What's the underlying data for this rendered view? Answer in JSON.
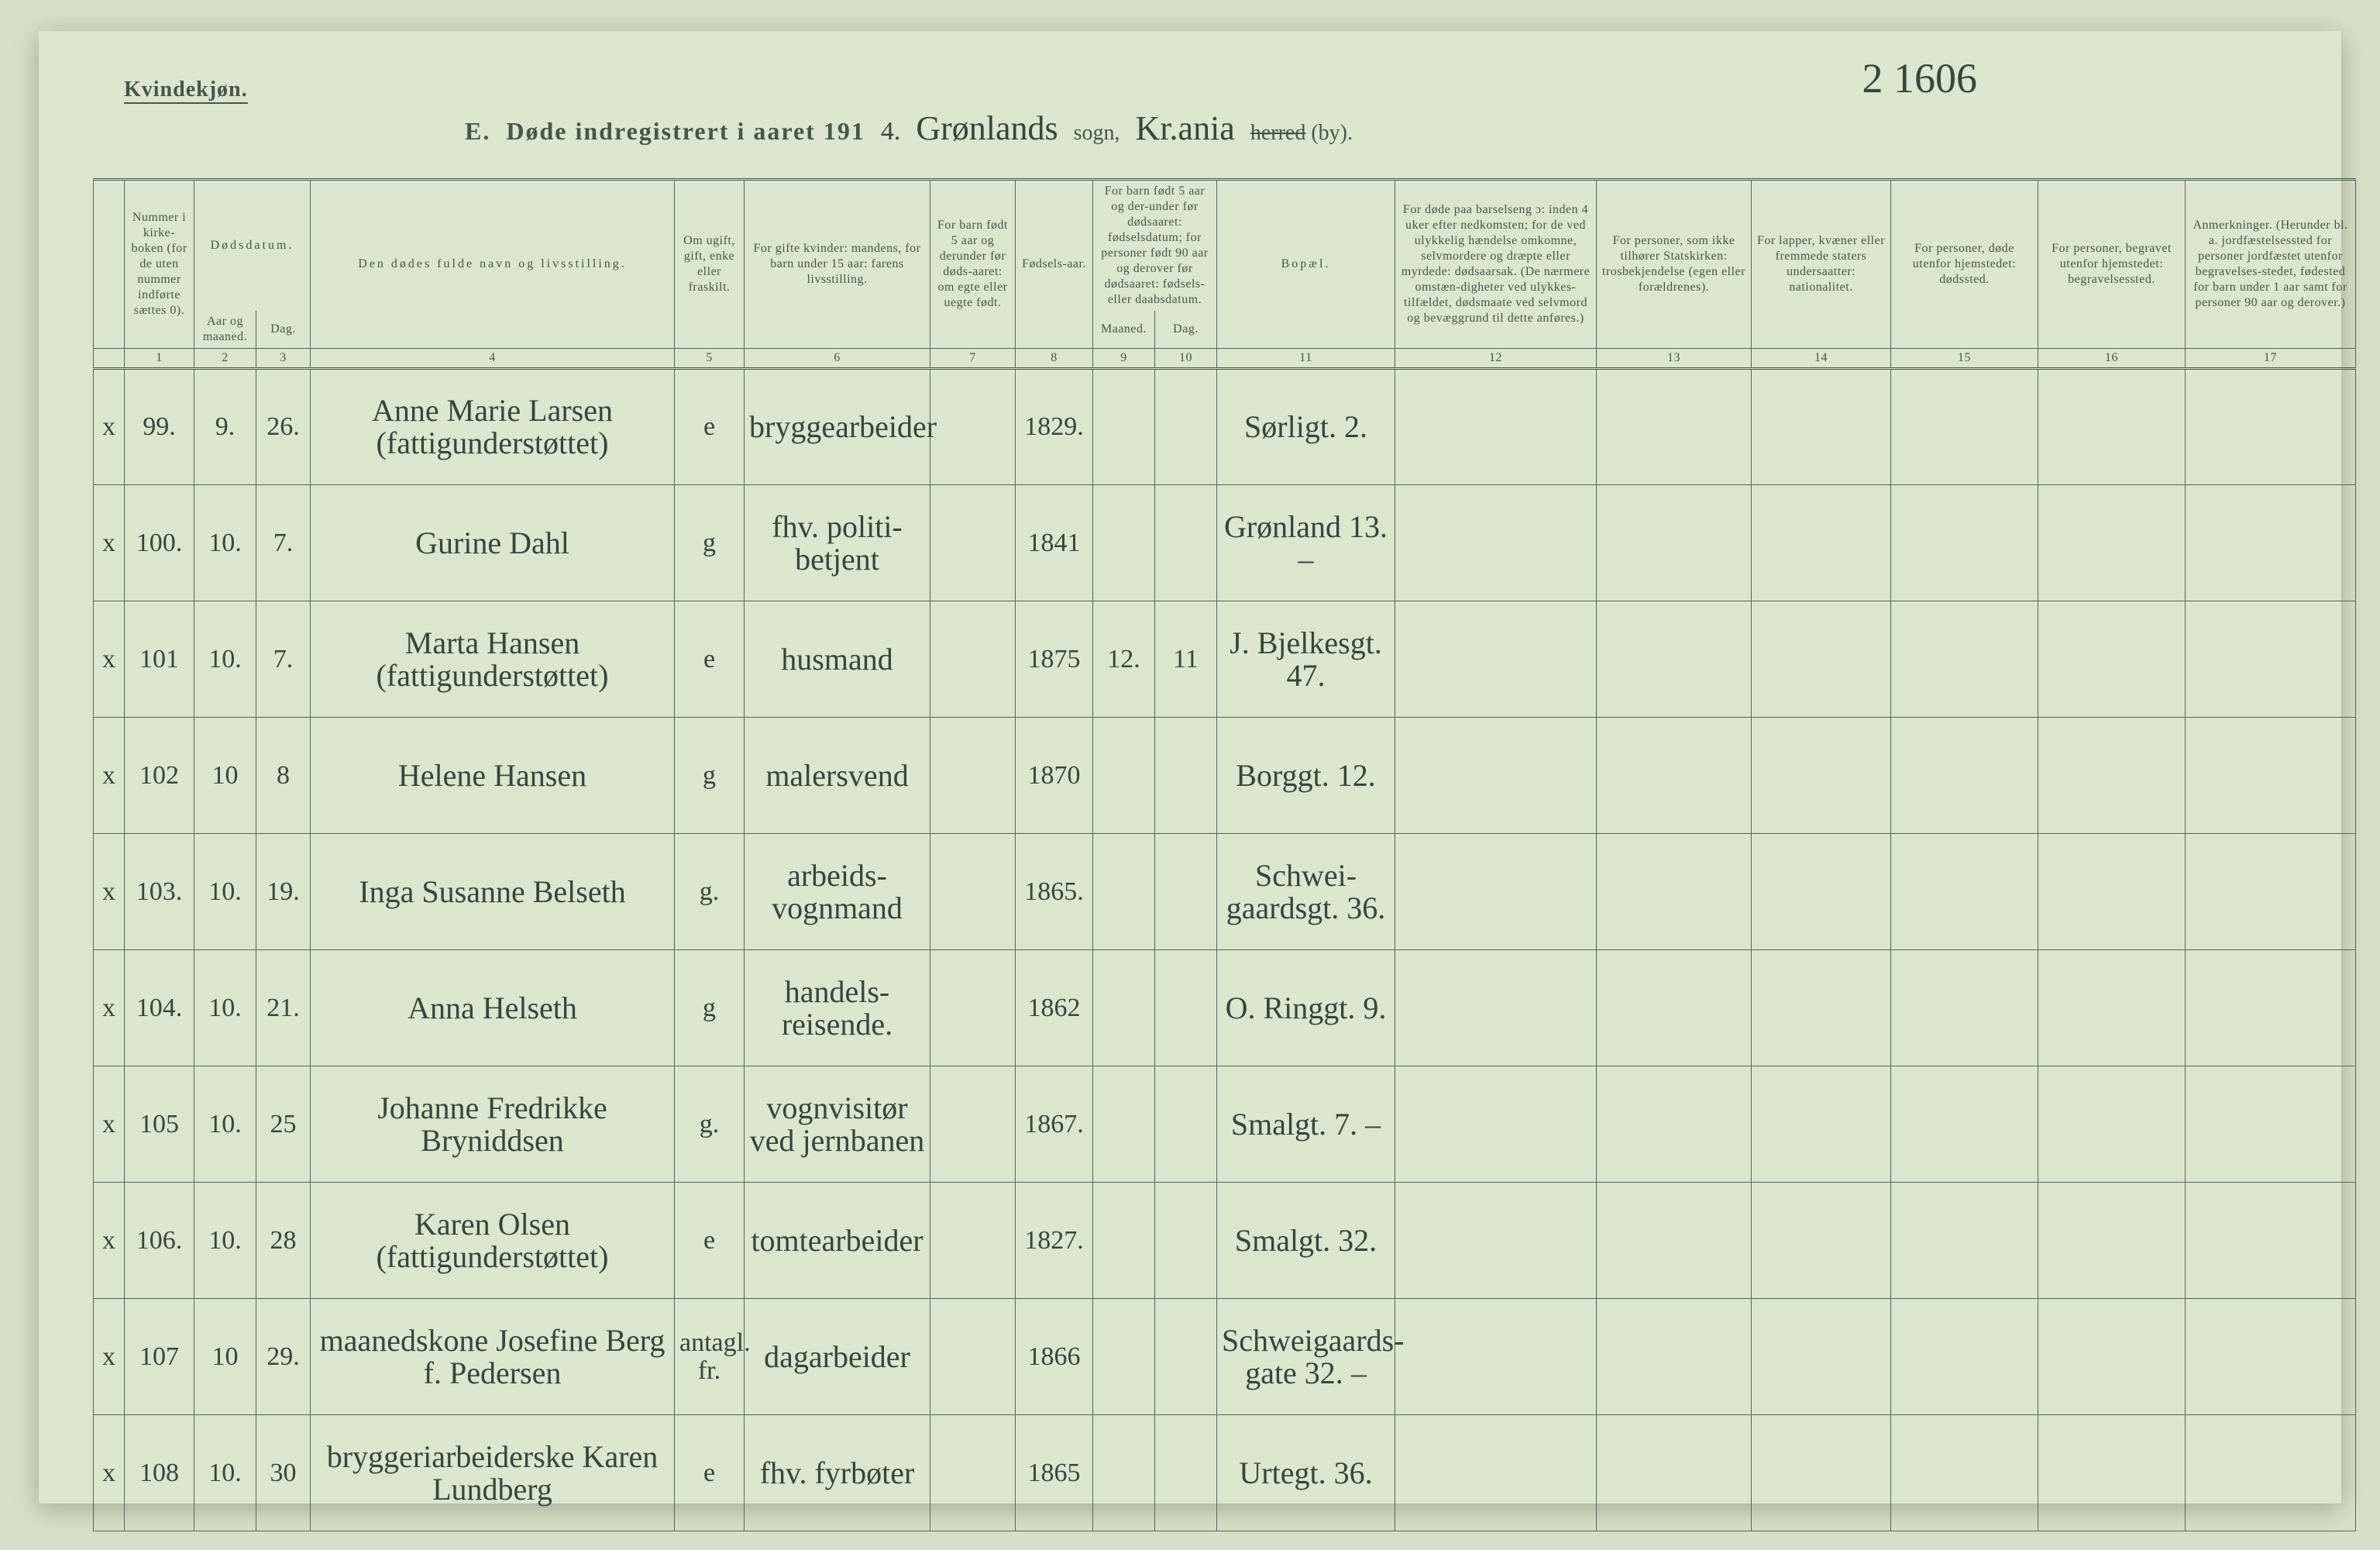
{
  "header": {
    "gender_label": "Kvindekjøn.",
    "section_letter": "E.",
    "title_prefix": "Døde indregistrert i aaret 191",
    "year_suffix": "4.",
    "parish_script": "Grønlands",
    "parish_label": "sogn,",
    "district_script": "Kr.ania",
    "herred_struck": "herred",
    "by_label": "(by).",
    "page_number_script": "2 1606"
  },
  "columns": {
    "c1": "Nummer i kirke-boken (for de uten nummer indførte sættes 0).",
    "c23_top": "Dødsdatum.",
    "c2": "Aar og maaned.",
    "c3": "Dag.",
    "c4": "Den dødes fulde navn og livsstilling.",
    "c5": "Om ugift, gift, enke eller fraskilt.",
    "c6": "For gifte kvinder: mandens, for barn under 15 aar: farens livsstilling.",
    "c7": "For barn født 5 aar og derunder før døds-aaret: om egte eller uegte født.",
    "c8": "Fødsels-aar.",
    "c910_top": "For barn født 5 aar og der-under før dødsaaret: fødselsdatum; for personer født 90 aar og derover før dødsaaret: fødsels- eller daabsdatum.",
    "c9": "Maaned.",
    "c10": "Dag.",
    "c11": "Bopæl.",
    "c12": "For døde paa barselseng ɔ: inden 4 uker efter nedkomsten; for de ved ulykkelig hændelse omkomne, selvmordere og dræpte eller myrdede: dødsaarsak. (De nærmere omstæn-digheter ved ulykkes-tilfældet, dødsmaate ved selvmord og bevæggrund til dette anføres.)",
    "c13": "For personer, som ikke tilhører Statskirken: trosbekjendelse (egen eller forældrenes).",
    "c14": "For lapper, kvæner eller fremmede staters undersaatter: nationalitet.",
    "c15": "For personer, døde utenfor hjemstedet: dødssted.",
    "c16": "For personer, begravet utenfor hjemstedet: begravelsessted.",
    "c17": "Anmerkninger. (Herunder bl. a. jordfæstelsessted for personer jordfæstet utenfor begravelses-stedet, fødested for barn under 1 aar samt for personer 90 aar og derover.)"
  },
  "colnums": [
    "1",
    "2",
    "3",
    "4",
    "5",
    "6",
    "7",
    "8",
    "9",
    "10",
    "11",
    "12",
    "13",
    "14",
    "15",
    "16",
    "17"
  ],
  "rows": [
    {
      "mark": "x",
      "num": "99.",
      "mon": "9.",
      "day": "26.",
      "name": "Anne Marie Larsen (fattigunderstøttet)",
      "status": "e",
      "occ": "bryggearbeider",
      "c7": "",
      "year": "1829.",
      "c9": "",
      "c10": "",
      "residence": "Sørligt. 2."
    },
    {
      "mark": "x",
      "num": "100.",
      "mon": "10.",
      "day": "7.",
      "name": "Gurine Dahl",
      "status": "g",
      "occ": "fhv. politi-betjent",
      "c7": "",
      "year": "1841",
      "c9": "",
      "c10": "",
      "residence": "Grønland 13. –"
    },
    {
      "mark": "x",
      "num": "101",
      "mon": "10.",
      "day": "7.",
      "name": "Marta Hansen (fattigunderstøttet)",
      "status": "e",
      "occ": "husmand",
      "c7": "",
      "year": "1875",
      "c9": "12.",
      "c10": "11",
      "residence": "J. Bjelkesgt. 47."
    },
    {
      "mark": "x",
      "num": "102",
      "mon": "10",
      "day": "8",
      "name": "Helene Hansen",
      "status": "g",
      "occ": "malersvend",
      "c7": "",
      "year": "1870",
      "c9": "",
      "c10": "",
      "residence": "Borggt. 12."
    },
    {
      "mark": "x",
      "num": "103.",
      "mon": "10.",
      "day": "19.",
      "name": "Inga Susanne Belseth",
      "status": "g.",
      "occ": "arbeids-vognmand",
      "c7": "",
      "year": "1865.",
      "c9": "",
      "c10": "",
      "residence": "Schwei-gaardsgt. 36."
    },
    {
      "mark": "x",
      "num": "104.",
      "mon": "10.",
      "day": "21.",
      "name": "Anna Helseth",
      "status": "g",
      "occ": "handels-reisende.",
      "c7": "",
      "year": "1862",
      "c9": "",
      "c10": "",
      "residence": "O. Ringgt. 9."
    },
    {
      "mark": "x",
      "num": "105",
      "mon": "10.",
      "day": "25",
      "name": "Johanne Fredrikke Bryniddsen",
      "status": "g.",
      "occ": "vognvisitør ved jernbanen",
      "c7": "",
      "year": "1867.",
      "c9": "",
      "c10": "",
      "residence": "Smalgt. 7. –"
    },
    {
      "mark": "x",
      "num": "106.",
      "mon": "10.",
      "day": "28",
      "name": "Karen Olsen (fattigunderstøttet)",
      "status": "e",
      "occ": "tomtearbeider",
      "c7": "",
      "year": "1827.",
      "c9": "",
      "c10": "",
      "residence": "Smalgt. 32."
    },
    {
      "mark": "x",
      "num": "107",
      "mon": "10",
      "day": "29.",
      "name": "maanedskone Josefine Berg f. Pedersen",
      "status": "antagl. fr.",
      "occ": "dagarbeider",
      "c7": "",
      "year": "1866",
      "c9": "",
      "c10": "",
      "residence": "Schweigaards-gate 32. –"
    },
    {
      "mark": "x",
      "num": "108",
      "mon": "10.",
      "day": "30",
      "name": "bryggeriarbeiderske Karen Lundberg",
      "status": "e",
      "occ": "fhv. fyrbøter",
      "c7": "",
      "year": "1865",
      "c9": "",
      "c10": "",
      "residence": "Urtegt. 36."
    }
  ]
}
